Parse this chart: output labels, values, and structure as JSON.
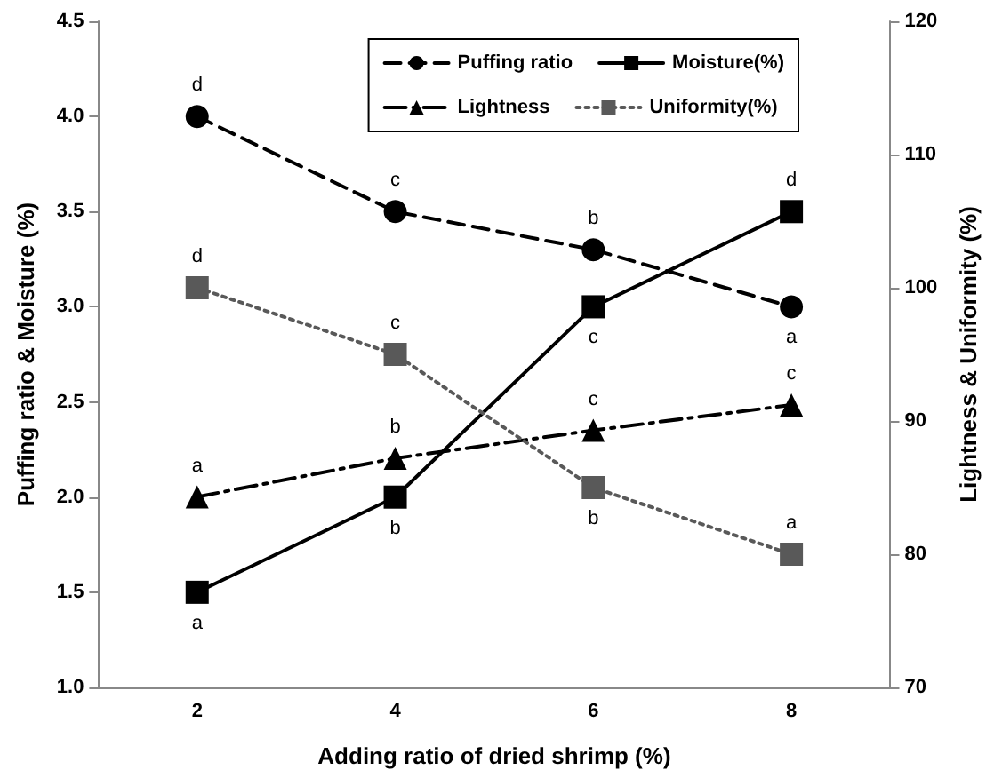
{
  "chart_data": {
    "type": "line",
    "xlabel": "Adding ratio of dried shrimp (%)",
    "ylabel": "Puffing ratio & Moisture (%)",
    "y2label": "Lightness & Uniformity (%)",
    "categories": [
      "2",
      "4",
      "6",
      "8"
    ],
    "ylim": [
      1.0,
      4.5
    ],
    "yticks": [
      {
        "value": 1.0,
        "label": "1.0"
      },
      {
        "value": 1.5,
        "label": "1.5"
      },
      {
        "value": 2.0,
        "label": "2.0"
      },
      {
        "value": 2.5,
        "label": "2.5"
      },
      {
        "value": 3.0,
        "label": "3.0"
      },
      {
        "value": 3.5,
        "label": "3.5"
      },
      {
        "value": 4.0,
        "label": "4.0"
      },
      {
        "value": 4.5,
        "label": "4.5"
      }
    ],
    "y2lim": [
      70,
      120
    ],
    "y2ticks": [
      70,
      80,
      90,
      100,
      110,
      120
    ],
    "legend": "top right",
    "grid": false,
    "series": [
      {
        "name": "Puffing ratio",
        "color": "#000000",
        "values": [
          4.0,
          3.5,
          3.3,
          3.0
        ],
        "marker": "circle",
        "line_style": "dashed"
      },
      {
        "name": "Moisture(%)",
        "color": "#000000",
        "values": [
          1.5,
          2.0,
          3.0,
          3.5
        ],
        "marker": "square",
        "line_style": "solid"
      },
      {
        "name": "Lightness",
        "color": "#000000",
        "values": [
          84.3,
          87.2,
          89.3,
          91.2
        ],
        "marker": "triangle",
        "line_style": "dashdot",
        "axis": "y2"
      },
      {
        "name": "Uniformity(%)",
        "color": "#595959",
        "values": [
          100,
          95,
          85,
          80
        ],
        "marker": "square",
        "line_style": "dotted",
        "axis": "y2"
      }
    ],
    "annotations": [
      "d",
      "c",
      "b",
      "a",
      "a",
      "b",
      "c",
      "d",
      "a",
      "b",
      "c",
      "c",
      "d",
      "c",
      "b",
      "a"
    ]
  }
}
